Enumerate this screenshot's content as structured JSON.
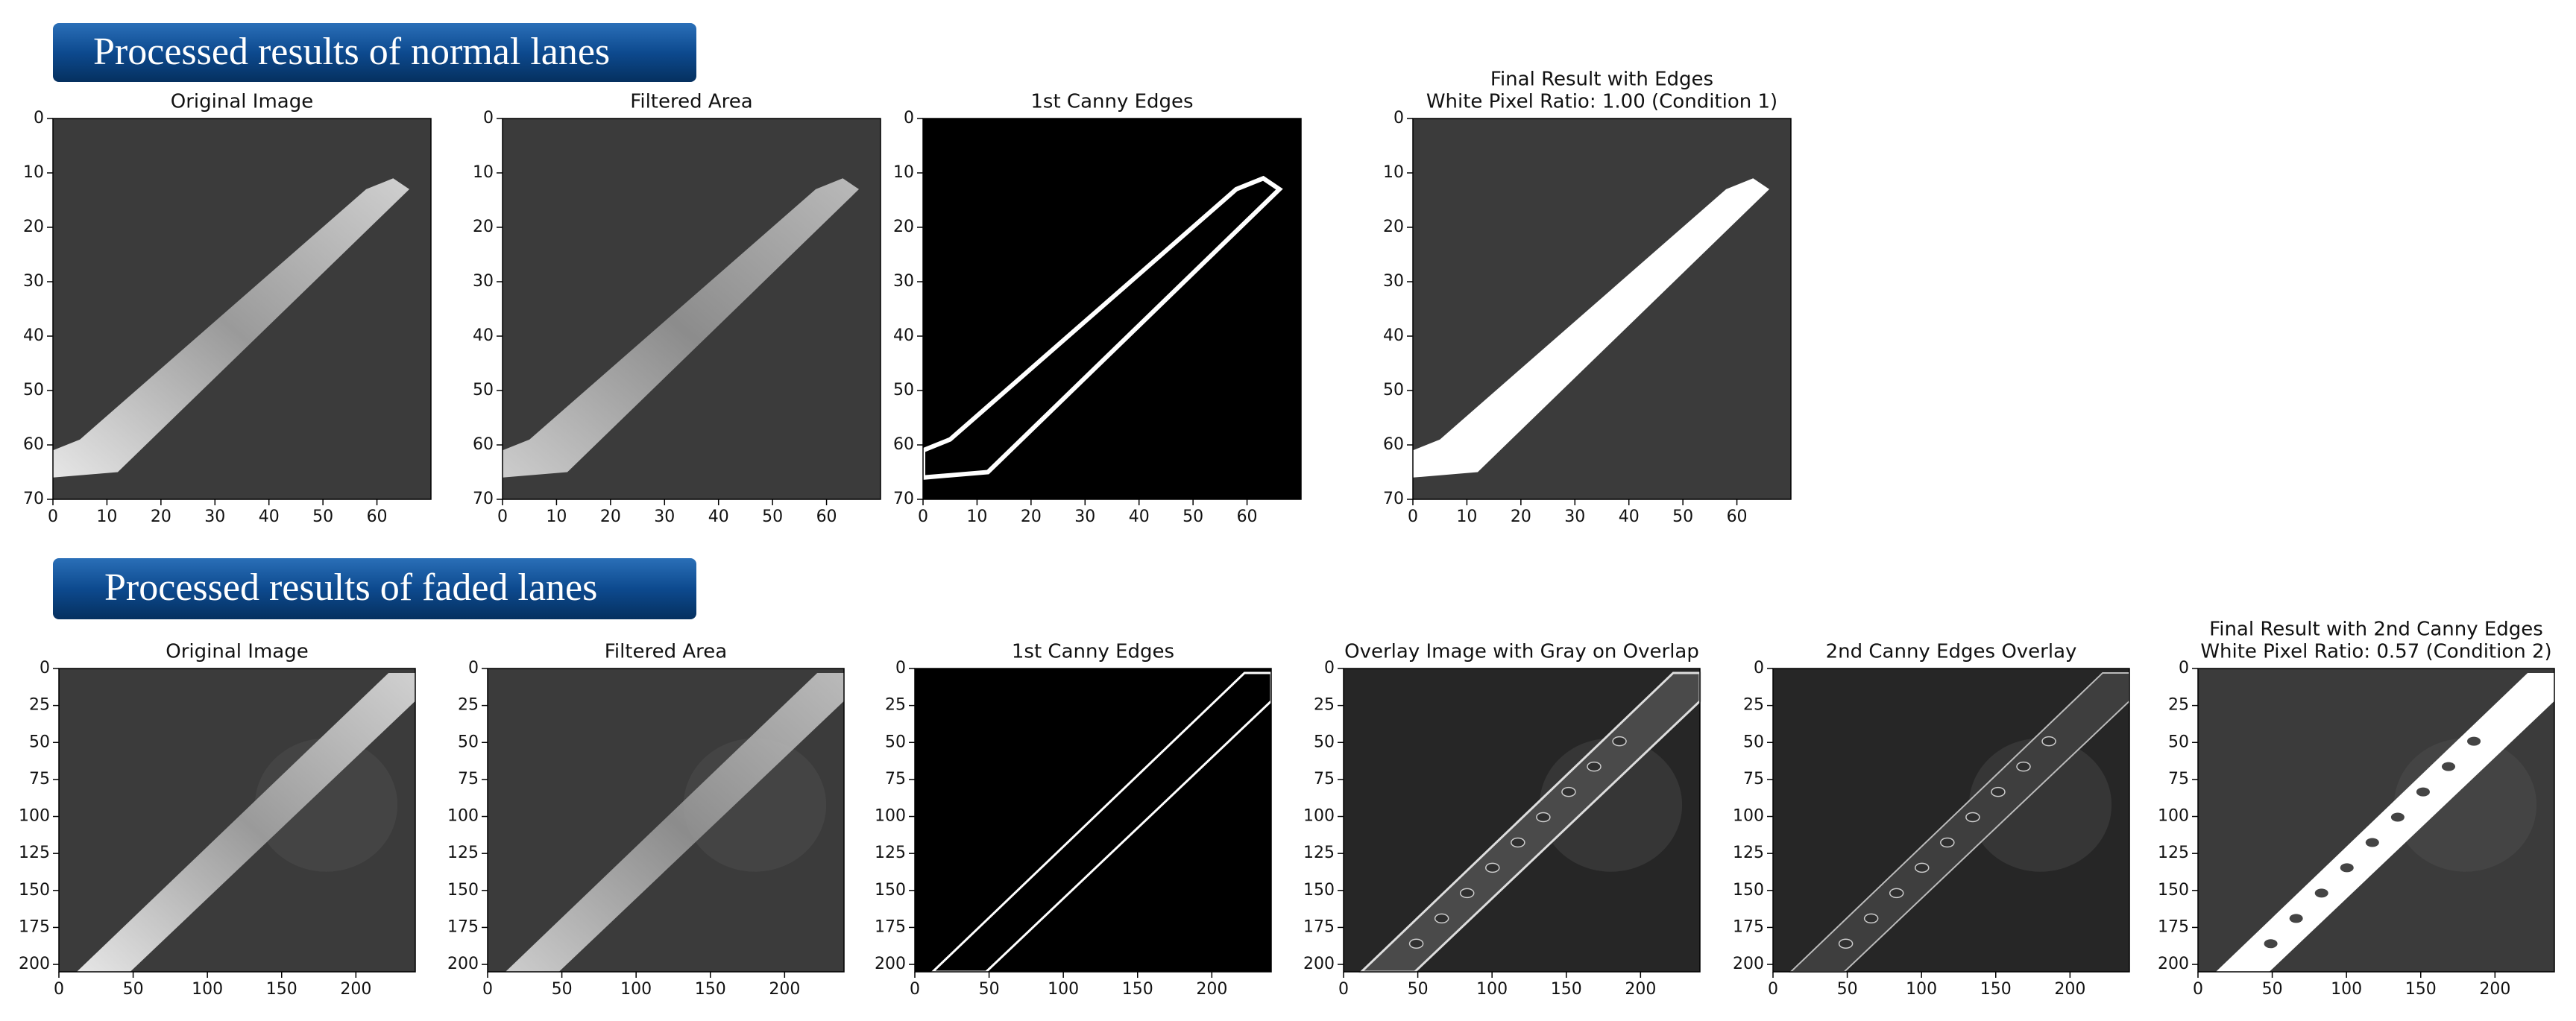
{
  "sections": [
    {
      "title": "Processed results of normal lanes",
      "xlim": [
        0,
        70
      ],
      "ylim": [
        0,
        70
      ],
      "xticks": [
        0,
        10,
        20,
        30,
        40,
        50,
        60
      ],
      "yticks": [
        0,
        10,
        20,
        30,
        40,
        50,
        60,
        70
      ],
      "panels": [
        {
          "title": [
            "Original Image"
          ]
        },
        {
          "title": [
            "Filtered Area"
          ]
        },
        {
          "title": [
            "1st Canny Edges"
          ]
        },
        {
          "title": [
            "Final Result with Edges",
            "White Pixel Ratio: 1.00 (Condition 1)"
          ]
        }
      ]
    },
    {
      "title": "Processed results of faded lanes",
      "xlim": [
        0,
        240
      ],
      "ylim": [
        0,
        205
      ],
      "xticks": [
        0,
        50,
        100,
        150,
        200
      ],
      "yticks": [
        0,
        25,
        50,
        75,
        100,
        125,
        150,
        175,
        200
      ],
      "panels": [
        {
          "title": [
            "Original Image"
          ]
        },
        {
          "title": [
            "Filtered Area"
          ]
        },
        {
          "title": [
            "1st Canny Edges"
          ]
        },
        {
          "title": [
            "Overlay Image with Gray on Overlap"
          ]
        },
        {
          "title": [
            "2nd Canny Edges Overlay"
          ]
        },
        {
          "title": [
            "Final Result with 2nd Canny Edges",
            "White Pixel Ratio: 0.57 (Condition 2)"
          ]
        }
      ]
    }
  ]
}
